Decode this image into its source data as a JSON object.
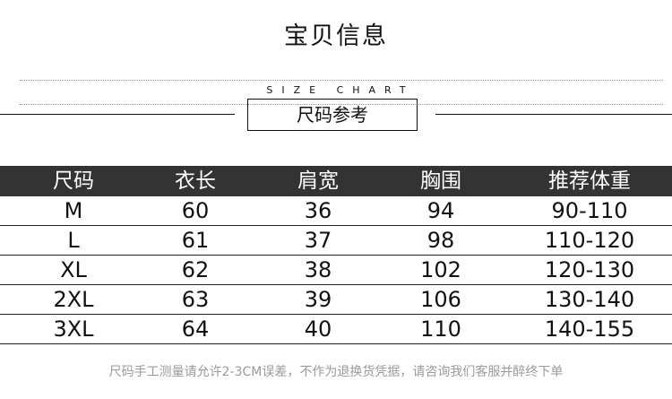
{
  "title": "宝贝信息",
  "subtitle": "SIZE CHART",
  "section_label": "尺码参考",
  "table": {
    "headers": [
      "尺码",
      "衣长",
      "肩宽",
      "胸围",
      "推荐体重"
    ],
    "rows": [
      [
        "M",
        "60",
        "36",
        "94",
        "90-110"
      ],
      [
        "L",
        "61",
        "37",
        "98",
        "110-120"
      ],
      [
        "XL",
        "62",
        "38",
        "102",
        "120-130"
      ],
      [
        "2XL",
        "63",
        "39",
        "106",
        "130-140"
      ],
      [
        "3XL",
        "64",
        "40",
        "110",
        "140-155"
      ]
    ]
  },
  "note": "尺码手工测量请允许2-3CM误差，不作为退换货凭据，请咨询我们客服并醉终下单"
}
